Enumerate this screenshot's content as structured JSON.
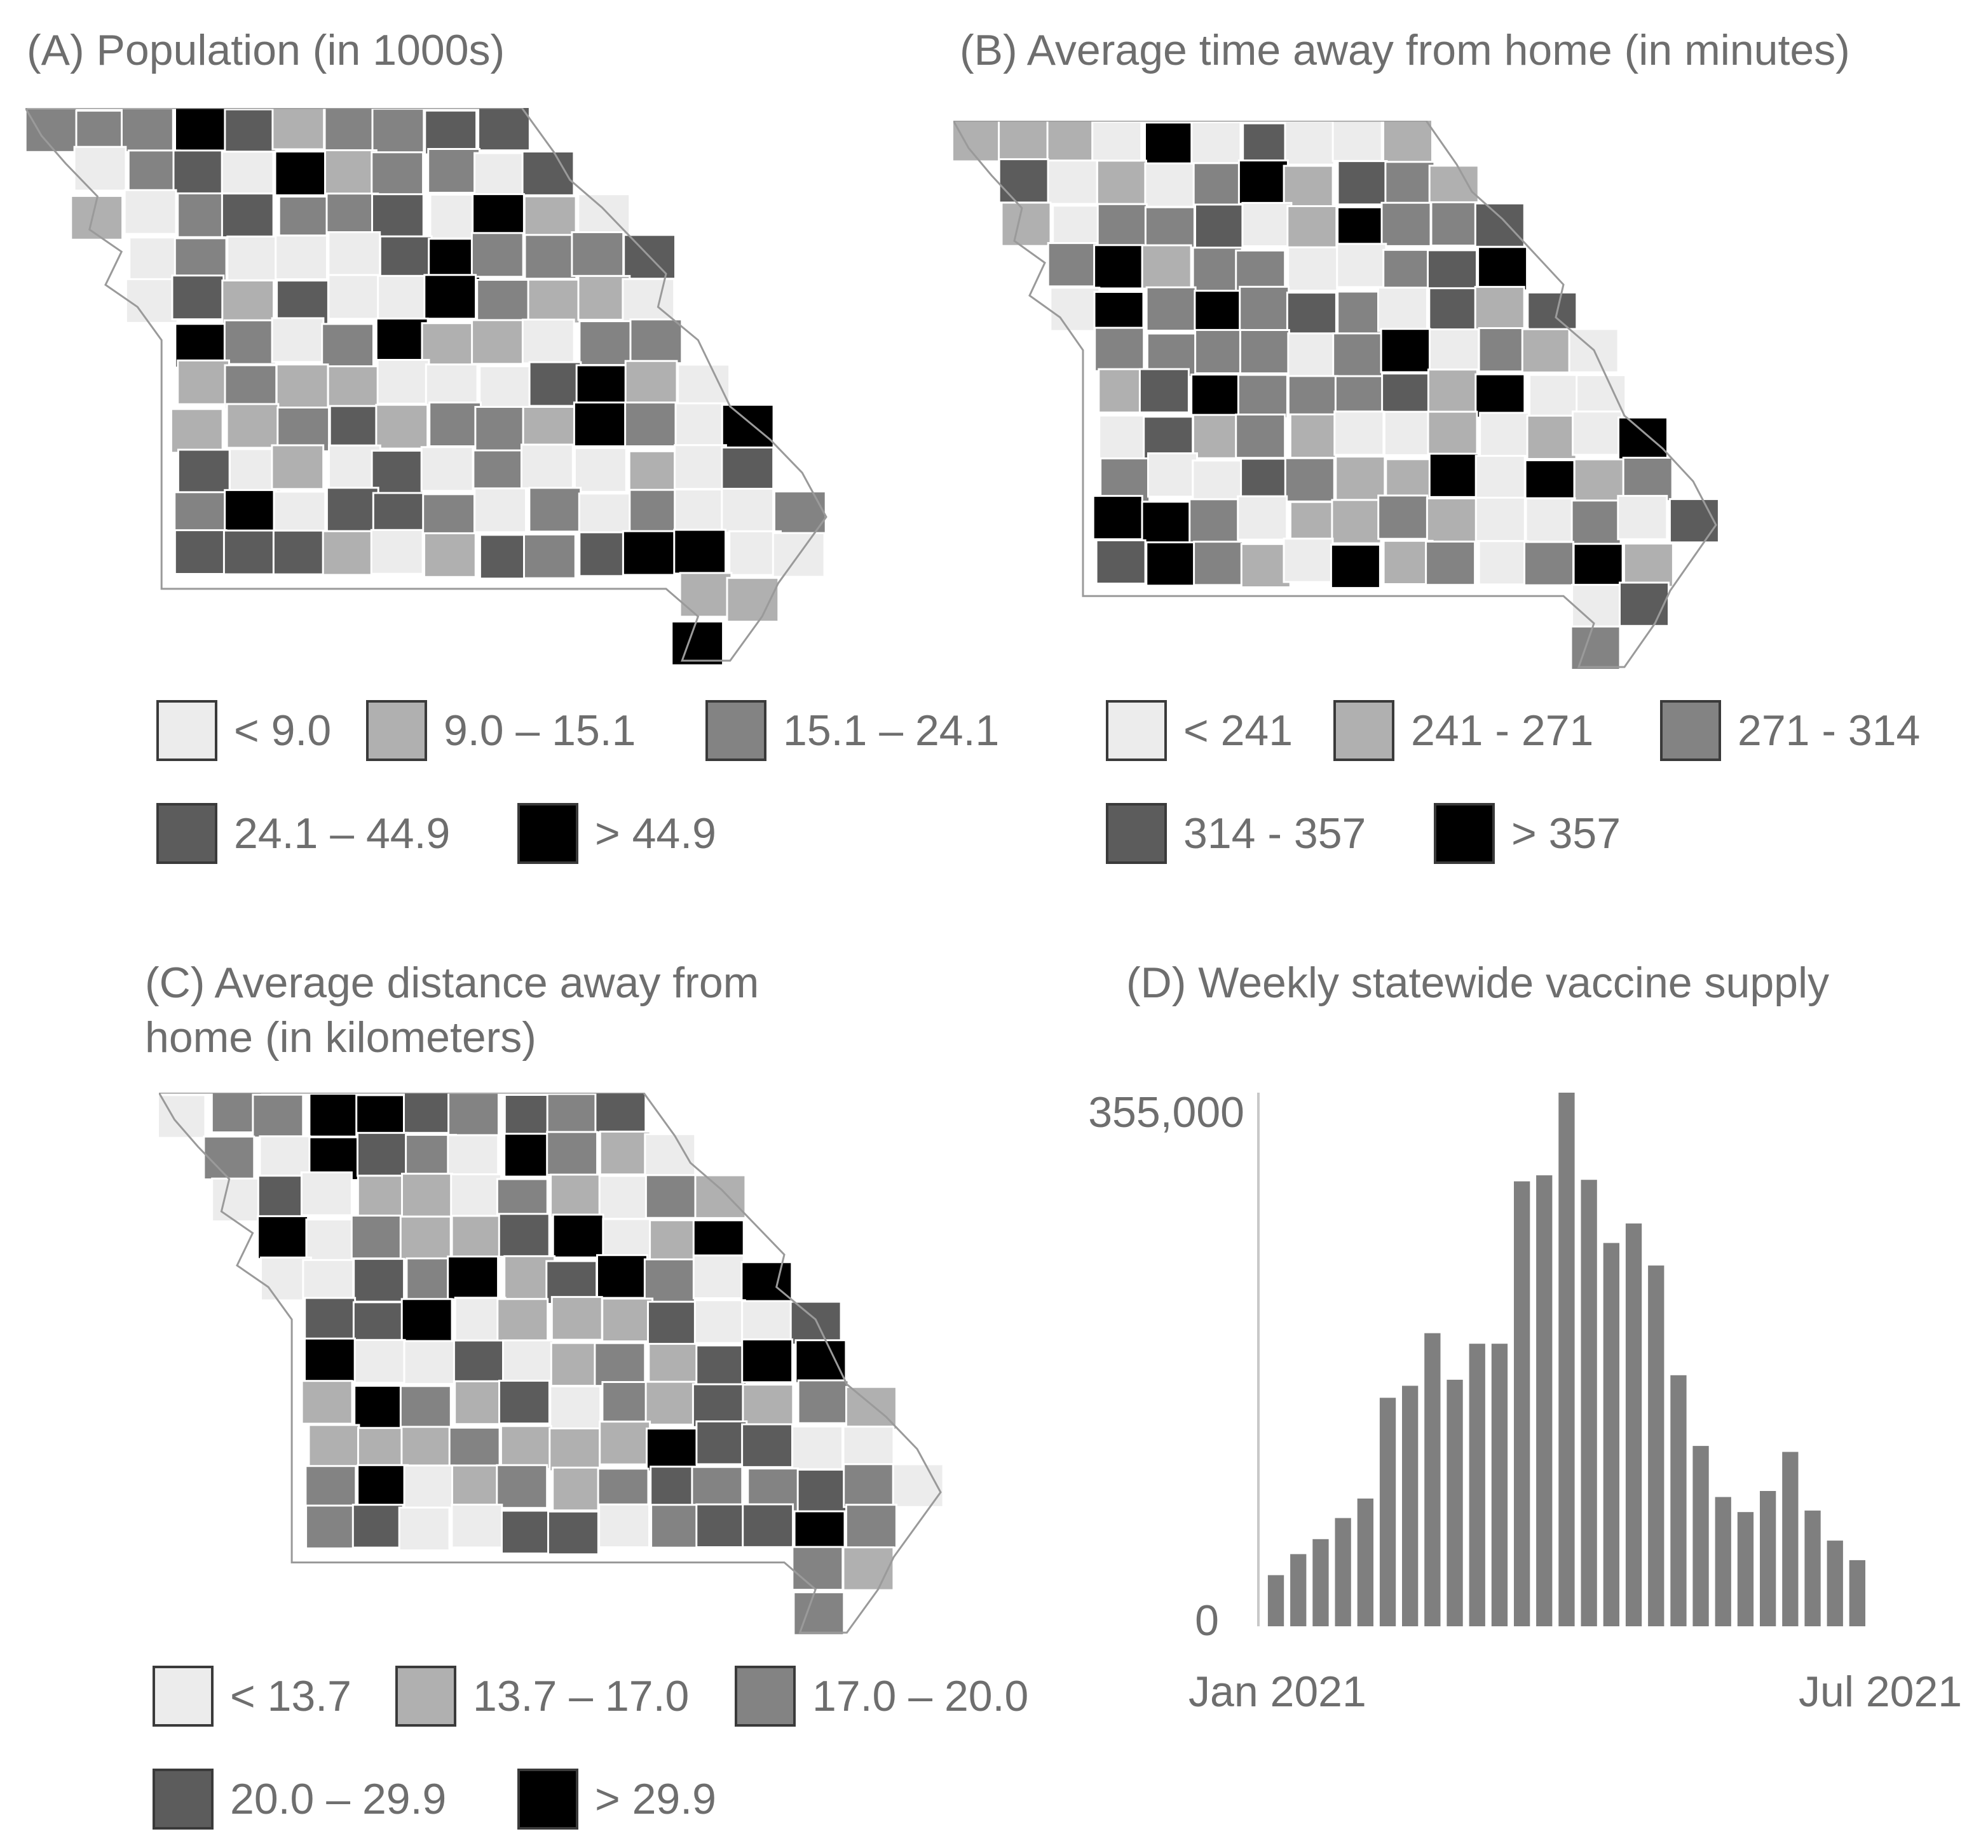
{
  "colors": {
    "class1": "#ececec",
    "class2": "#b0b0b0",
    "class3": "#838383",
    "class4": "#5c5c5c",
    "class5": "#000000",
    "bar": "#7f7f7f",
    "axis": "#c8c8c8"
  },
  "panel_a": {
    "title": "(A) Population (in 1000s)",
    "legend": [
      "< 9.0",
      "9.0 – 15.1",
      "15.1 – 24.1",
      "24.1 – 44.9",
      "> 44.9"
    ]
  },
  "panel_b": {
    "title": "(B) Average time away from home (in minutes)",
    "legend": [
      "< 241",
      "241 - 271",
      "271 - 314",
      "314 - 357",
      "> 357"
    ]
  },
  "panel_c": {
    "title_line1": "(C) Average distance away from",
    "title_line2": "home (in kilometers)",
    "legend": [
      "< 13.7",
      "13.7 – 17.0",
      "17.0 – 20.0",
      "20.0 – 29.9",
      "> 29.9"
    ]
  },
  "chart_data": {
    "type": "bar",
    "title": "(D) Weekly statewide vaccine supply",
    "y_tick_labels": [
      "0",
      "355,000"
    ],
    "x_tick_labels": [
      "Jan 2021",
      "Jul 2021"
    ],
    "ylim": [
      0,
      355000
    ],
    "values": [
      34000,
      48000,
      58000,
      72000,
      85000,
      152000,
      160000,
      195000,
      164000,
      188000,
      188000,
      296000,
      300000,
      355000,
      297000,
      255000,
      268000,
      240000,
      167000,
      120000,
      86000,
      76000,
      90000,
      116000,
      77000,
      57000,
      44000
    ]
  }
}
